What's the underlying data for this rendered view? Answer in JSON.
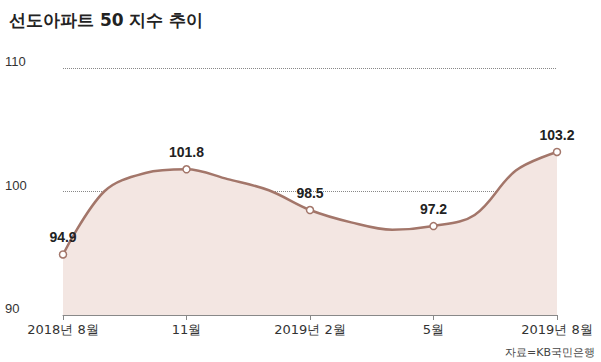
{
  "chart_data": {
    "type": "line",
    "title": "선도아파트 50 지수 추이",
    "source": "자료=KB국민은행",
    "categories": [
      "2018년 8월",
      null,
      null,
      "11월",
      null,
      null,
      "2019년 2월",
      null,
      null,
      "5월",
      null,
      null,
      "2019년 8월"
    ],
    "values": [
      94.9,
      100.0,
      101.5,
      101.8,
      101.0,
      100.1,
      98.5,
      97.5,
      96.9,
      97.2,
      98.1,
      101.7,
      103.2
    ],
    "value_labels": [
      "94.9",
      null,
      null,
      "101.8",
      null,
      null,
      "98.5",
      null,
      null,
      "97.2",
      null,
      null,
      "103.2"
    ],
    "color": "#a3766a",
    "ylim": [
      90,
      110
    ],
    "yticks": [
      90,
      100,
      110
    ],
    "grid": true,
    "marker": "circle"
  }
}
